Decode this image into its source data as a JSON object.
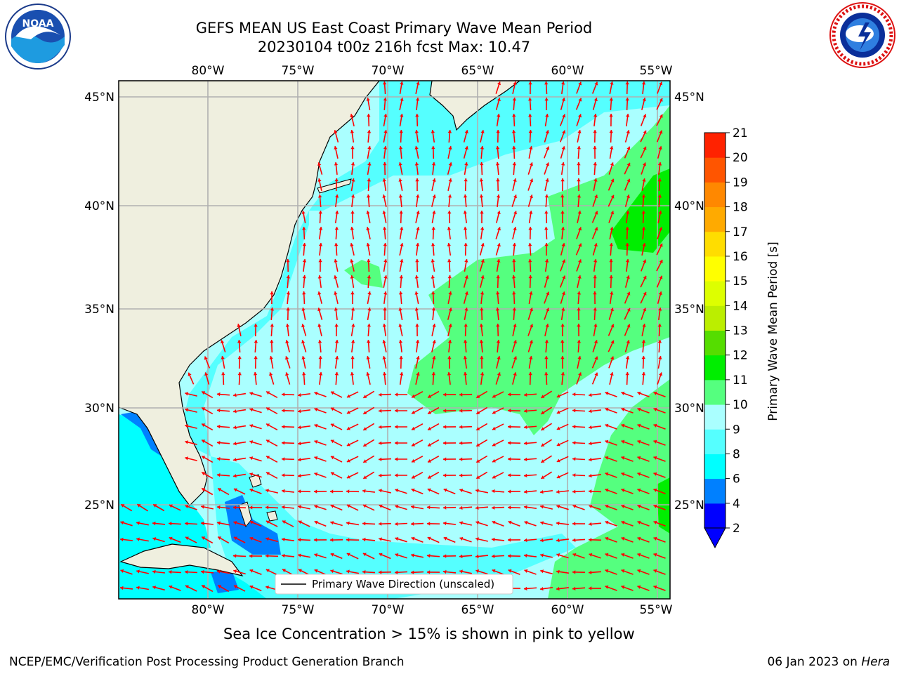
{
  "title_line1": "GEFS MEAN US East Coast Primary Wave Mean Period",
  "title_line2": "20230104 t00z 216h fcst   Max: 10.47",
  "lon_labels": [
    "80°W",
    "75°W",
    "70°W",
    "65°W",
    "60°W",
    "55°W"
  ],
  "lat_labels": [
    "45°N",
    "40°N",
    "35°N",
    "30°N",
    "25°N"
  ],
  "colorbar": {
    "label": "Primary Wave Mean Period [s]",
    "ticks": [
      "2",
      "4",
      "6",
      "8",
      "9",
      "10",
      "11",
      "12",
      "13",
      "14",
      "15",
      "16",
      "17",
      "18",
      "19",
      "20",
      "21"
    ],
    "colors": [
      "#0000ff",
      "#0080ff",
      "#00ffff",
      "#55ffff",
      "#aaffff",
      "#55ff7f",
      "#00ee00",
      "#55dd00",
      "#bbee00",
      "#ddff00",
      "#ffff00",
      "#ffdd00",
      "#ffaa00",
      "#ff8800",
      "#ff5500",
      "#ff2200",
      "#ff0000"
    ]
  },
  "legend_label": "Primary Wave Direction (unscaled)",
  "caption": "Sea Ice Concentration > 15% is shown in pink to yellow",
  "footer_left": "NCEP/EMC/Verification Post Processing Product Generation Branch",
  "footer_right_date": "06 Jan 2023 on ",
  "footer_right_host": "Hera",
  "logos": {
    "noaa_text": "NOAA",
    "noaa_ring": "NATIONAL OCEANIC AND ATMOSPHERIC ADMINISTRATION · U.S. DEPARTMENT OF COMMERCE",
    "nws_ring": "NATIONAL WEATHER SERVICE"
  },
  "colors": {
    "land": "#efefdf",
    "arrow": "#ff0000",
    "grid": "#b0b0b0"
  }
}
